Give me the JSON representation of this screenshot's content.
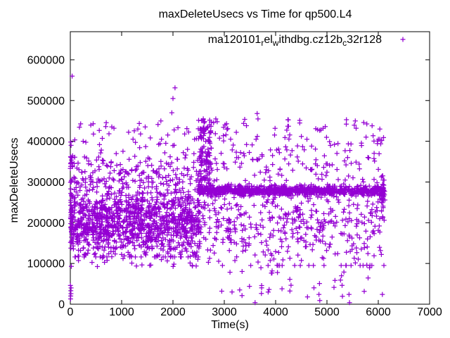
{
  "chart_data": {
    "type": "scatter",
    "title": "maxDeleteUsecs vs Time for qp500.L4",
    "xlabel": "Time(s)",
    "ylabel": "maxDeleteUsecs",
    "xlim": [
      0,
      7000
    ],
    "ylim": [
      0,
      669000
    ],
    "xticks": [
      0,
      1000,
      2000,
      3000,
      4000,
      5000,
      6000,
      7000
    ],
    "yticks": [
      0,
      100000,
      200000,
      300000,
      400000,
      500000,
      600000
    ],
    "grid": false,
    "background_color": "#ffffff",
    "axis_color": "#000000",
    "legend": {
      "position": "top-right-inside",
      "marker": "plus",
      "label": "ma120101_rel_withdbg.cz12b_c32r128",
      "segments": [
        {
          "text": "ma120101",
          "sub": false
        },
        {
          "text": "r",
          "sub": true
        },
        {
          "text": "el",
          "sub": false
        },
        {
          "text": "w",
          "sub": true
        },
        {
          "text": "ithdbg.cz12b",
          "sub": false
        },
        {
          "text": "c",
          "sub": true
        },
        {
          "text": "32r128",
          "sub": false
        }
      ]
    },
    "series": [
      {
        "name": "ma120101_rel_withdbg.cz12b_c32r128",
        "marker": "plus",
        "marker_size": 7,
        "color": "#9400d3",
        "seed": 42,
        "representation": "dense scatter approximated by explicit outlier points plus sampled clusters",
        "points_outliers": [
          [
            35,
            560000
          ],
          [
            2040,
            531000
          ],
          [
            2000,
            505000
          ],
          [
            1978,
            470000
          ],
          [
            3640,
            468000
          ],
          [
            1765,
            450000
          ],
          [
            445,
            443000
          ],
          [
            850,
            432000
          ],
          [
            1315,
            430000
          ],
          [
            690,
            436000
          ],
          [
            3067,
            431000
          ],
          [
            4250,
            437000
          ],
          [
            5552,
            450000
          ],
          [
            5716,
            446000
          ],
          [
            6030,
            430000
          ],
          [
            5880,
            438000
          ],
          [
            2590,
            455000
          ],
          [
            8,
            398000
          ],
          [
            15,
            390000
          ],
          [
            5,
            362000
          ],
          [
            3,
            46000
          ],
          [
            5,
            13000
          ],
          [
            8,
            20000
          ],
          [
            12,
            26000
          ],
          [
            10,
            33000
          ],
          [
            15,
            40000
          ],
          [
            20,
            93000
          ],
          [
            3600,
            4000
          ],
          [
            5440,
            4000
          ],
          [
            5430,
            24000
          ],
          [
            6080,
            24000
          ],
          [
            4860,
            9000
          ],
          [
            3300,
            35000
          ],
          [
            2950,
            32000
          ],
          [
            3150,
            30000
          ]
        ],
        "point_clusters": [
          {
            "n": 1200,
            "t": {
              "dist": "uniform",
              "min": 5,
              "max": 2520
            },
            "v": {
              "dist": "normal",
              "mean": 203000,
              "sd": 45000,
              "min": 116000,
              "max": 362000
            }
          },
          {
            "n": 45,
            "t": {
              "dist": "uniform",
              "min": 0,
              "max": 45
            },
            "v": {
              "dist": "uniform",
              "min": 128000,
              "max": 365000
            }
          },
          {
            "n": 130,
            "t": {
              "dist": "uniform",
              "min": 10,
              "max": 2520
            },
            "v": {
              "dist": "uniform",
              "min": 295000,
              "max": 362000
            }
          },
          {
            "n": 48,
            "t": {
              "dist": "uniform",
              "min": 60,
              "max": 2470
            },
            "v": {
              "dist": "uniform",
              "min": 362000,
              "max": 448000
            }
          },
          {
            "n": 30,
            "t": {
              "dist": "uniform",
              "min": 60,
              "max": 2500
            },
            "v": {
              "dist": "uniform",
              "min": 92000,
              "max": 126000
            }
          },
          {
            "n": 120,
            "t": {
              "dist": "uniform",
              "min": 2480,
              "max": 2750
            },
            "v": {
              "dist": "uniform",
              "min": 288000,
              "max": 455000
            }
          },
          {
            "n": 820,
            "t": {
              "dist": "uniform",
              "min": 2490,
              "max": 6115
            },
            "v": {
              "dist": "normal",
              "mean": 278500,
              "sd": 5200,
              "min": 262000,
              "max": 295000
            }
          },
          {
            "n": 470,
            "t": {
              "dist": "uniform",
              "min": 2500,
              "max": 6115
            },
            "v": {
              "dist": "normal",
              "mean": 202000,
              "sd": 55000,
              "min": 95000,
              "max": 290000
            }
          },
          {
            "n": 55,
            "t": {
              "dist": "uniform",
              "min": 2520,
              "max": 6100
            },
            "v": {
              "dist": "uniform",
              "min": 292000,
              "max": 338000
            }
          },
          {
            "n": 135,
            "t": {
              "dist": "uniform",
              "min": 2520,
              "max": 6110
            },
            "v": {
              "dist": "uniform",
              "min": 338000,
              "max": 455000
            }
          },
          {
            "n": 32,
            "t": {
              "dist": "uniform",
              "min": 2700,
              "max": 6110
            },
            "v": {
              "dist": "uniform",
              "min": 18000,
              "max": 92000
            }
          },
          {
            "n": 40,
            "t": {
              "dist": "normal",
              "mean": 6090,
              "sd": 18,
              "min": 6040,
              "max": 6130
            },
            "v": {
              "dist": "normal",
              "mean": 273000,
              "sd": 30000,
              "min": 190000,
              "max": 315000
            }
          }
        ]
      }
    ]
  }
}
